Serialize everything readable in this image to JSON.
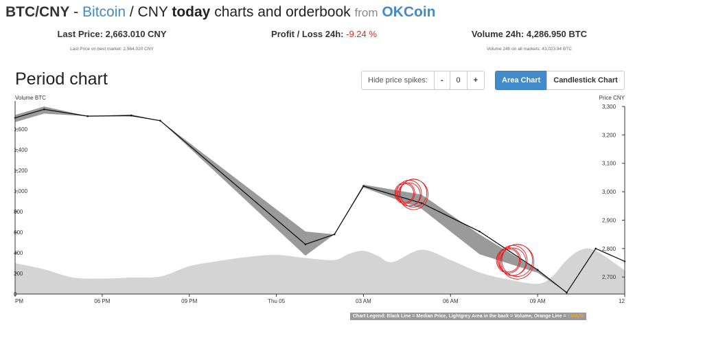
{
  "header": {
    "pair": "BTC/CNY",
    "sep1": " - ",
    "coin": "Bitcoin",
    "sep2": " / CNY ",
    "today": "today",
    "rest": " charts and orderbook ",
    "from": "from",
    "exchange": "OKCoin"
  },
  "stats": {
    "last_price_label": "Last Price:",
    "last_price_value": "2,663.010 CNY",
    "last_price_sub": "Last Price on best market: 2,964.020 CNY",
    "profit_label": "Profit / Loss 24h:",
    "profit_value": "-9.24 %",
    "volume_label": "Volume 24h:",
    "volume_value": "4,286.950 BTC",
    "volume_sub": "Volume 24h on all markets: 43,023.94 BTC"
  },
  "period_title": "Period chart",
  "controls": {
    "spikes_label": "Hide price spikes:",
    "minus": "-",
    "value": "0",
    "plus": "+",
    "area_chart": "Area Chart",
    "candlestick_chart": "Candlestick Chart"
  },
  "legend": {
    "text": "Chart Legend: Black Line = Median Price, Lightgrey Area in the back = Volume, Orange Line = ",
    "ema": "EMA20"
  },
  "colors": {
    "accent": "#428bca",
    "negative": "#e0281f",
    "ema": "#f7a31c",
    "volume": "#d4d4d4",
    "price_band": "#888888",
    "price_line": "#111111",
    "annotation": "#e8141a"
  },
  "chart_data": {
    "type": "area",
    "left_axis_label": "Volume BTC",
    "right_axis_label": "Price CNY",
    "x_ticks": [
      "PM",
      "06 PM",
      "09 PM",
      "Thu 05",
      "03 AM",
      "06 AM",
      "09 AM",
      "12"
    ],
    "volume_ticks": [
      0,
      200,
      400,
      600,
      800,
      1000,
      1200,
      1400,
      1600
    ],
    "volume_ylim": [
      0,
      1800
    ],
    "price_ticks": [
      "2,700",
      "2,800",
      "2,900",
      "3,000",
      "3,100",
      "3,200",
      "3,300"
    ],
    "price_ylim": [
      2640,
      3300
    ],
    "x_range": [
      0,
      21
    ],
    "median_price": {
      "x": [
        0,
        1,
        2.5,
        4,
        5,
        10,
        11,
        12,
        14,
        16,
        18,
        19,
        20,
        21
      ],
      "y": [
        3260,
        3290,
        3266,
        3268,
        3250,
        2815,
        2850,
        3020,
        2960,
        2860,
        2725,
        2645,
        2800,
        2755
      ]
    },
    "price_band_high": [
      3270,
      3300,
      3266,
      3272,
      3250,
      2860,
      2850,
      3025,
      2990,
      2850,
      2725,
      2645,
      2800,
      2755
    ],
    "price_band_low": [
      3245,
      3275,
      3266,
      3265,
      3250,
      2775,
      2850,
      3015,
      2940,
      2780,
      2715,
      2645,
      2800,
      2755
    ],
    "volume": {
      "x": [
        0,
        1,
        2,
        3,
        4,
        5,
        6,
        7,
        8,
        9,
        10,
        11,
        11.5,
        12,
        12.5,
        13,
        14,
        15,
        16,
        17,
        18,
        18.5,
        19,
        19.5,
        20,
        21
      ],
      "y": [
        300,
        240,
        160,
        150,
        160,
        170,
        270,
        320,
        360,
        380,
        350,
        330,
        390,
        420,
        370,
        310,
        430,
        330,
        210,
        140,
        100,
        170,
        330,
        430,
        420,
        230
      ]
    }
  }
}
